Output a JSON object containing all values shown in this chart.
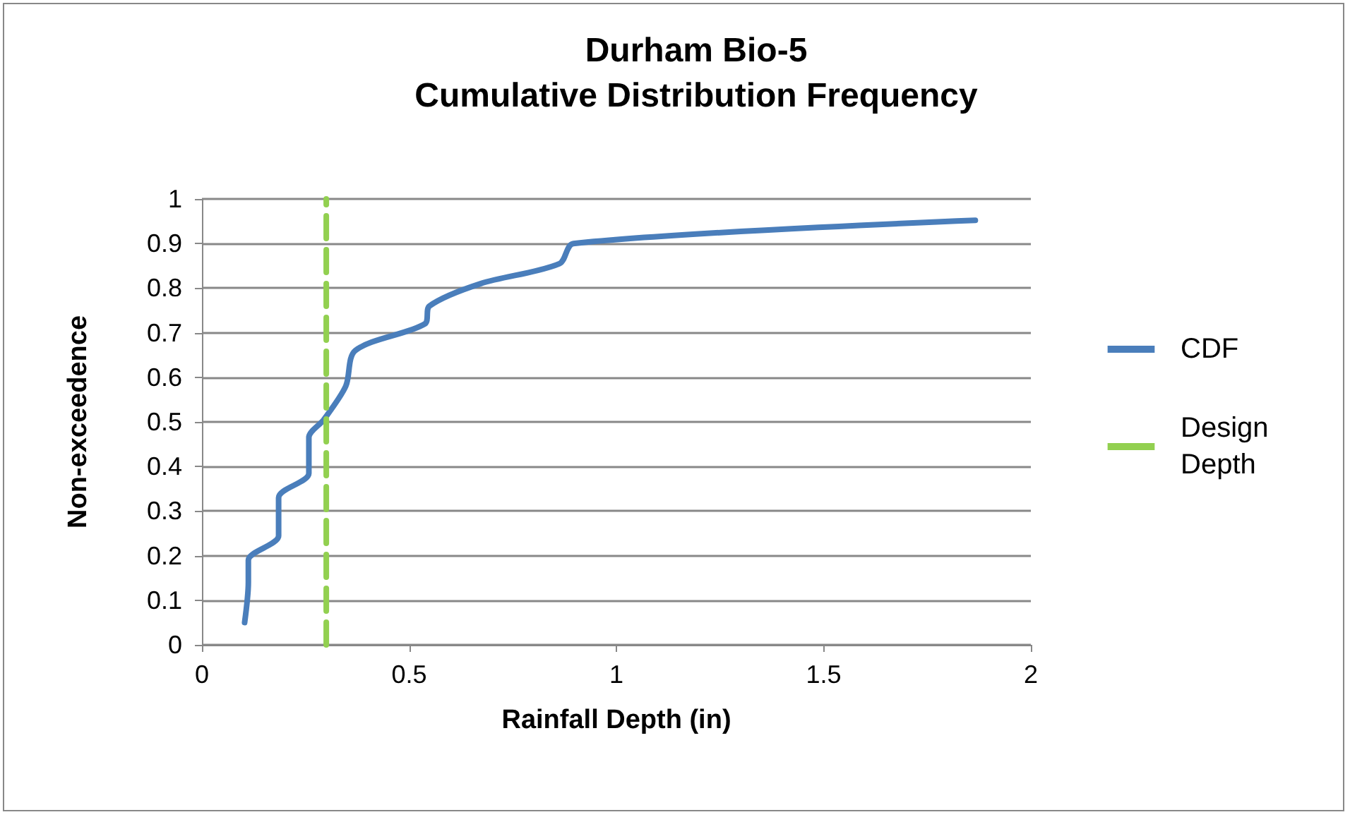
{
  "chart_data": {
    "type": "line",
    "title": "Durham Bio-5",
    "subtitle": "Cumulative Distribution Frequency",
    "xlabel": "Rainfall Depth (in)",
    "ylabel": "Non-exceedence",
    "xlim": [
      0,
      2
    ],
    "xticks": [
      0,
      0.5,
      1,
      1.5,
      2
    ],
    "ylim": [
      0,
      1
    ],
    "yticks": [
      0,
      0.1,
      0.2,
      0.3,
      0.4,
      0.5,
      0.6,
      0.7,
      0.8,
      0.9,
      1
    ],
    "grid": "y",
    "legend": "right",
    "marker": "none",
    "series": [
      {
        "name": "CDF",
        "color": "#4a7ebb",
        "line_style": "solid",
        "x": [
          0.103,
          0.112,
          0.112,
          0.185,
          0.185,
          0.258,
          0.258,
          0.294,
          0.347,
          0.37,
          0.538,
          0.549,
          0.672,
          0.863,
          0.896,
          1.866
        ],
        "values": [
          0.05,
          0.14,
          0.19,
          0.245,
          0.33,
          0.385,
          0.465,
          0.505,
          0.58,
          0.66,
          0.72,
          0.76,
          0.81,
          0.855,
          0.9,
          0.952
        ]
      },
      {
        "name": "Design Depth",
        "color": "#92d050",
        "line_style": "dashed",
        "x": [
          0.3,
          0.3
        ],
        "values": [
          0,
          1
        ]
      }
    ]
  }
}
